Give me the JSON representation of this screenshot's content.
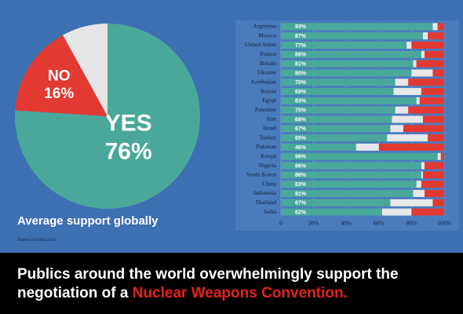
{
  "chart_data": [
    {
      "type": "pie",
      "title": "Average support globally",
      "source": "Source: Global Zero",
      "categories": [
        "YES",
        "NO",
        null
      ],
      "values": [
        76,
        16,
        8
      ],
      "value_labels": [
        "76%",
        "16%",
        null
      ],
      "colors": [
        "#4aa89a",
        "#e23a33",
        "#e6e6e6"
      ]
    },
    {
      "type": "stacked-bar-horizontal",
      "categories": [
        "Argentina",
        "Mexico",
        "United States",
        "France",
        "Britain",
        "Ukraine",
        "Azerbaijan",
        "Russia",
        "Egypt",
        "Palestine",
        "Iran",
        "Israel",
        "Turkey",
        "Pakistan",
        "Kenya",
        "Nigeria",
        "South Korea",
        "China",
        "Indonesia",
        "Thailand",
        "India"
      ],
      "series": [
        {
          "color": "#4aa89a",
          "values": [
            93,
            87,
            77,
            86,
            81,
            80,
            70,
            69,
            83,
            70,
            68,
            67,
            65,
            46,
            96,
            86,
            86,
            83,
            81,
            67,
            62
          ],
          "value_labels": [
            "93%",
            "87%",
            "77%",
            "86%",
            "81%",
            "80%",
            "70%",
            "69%",
            "83%",
            "70%",
            "68%",
            "67%",
            "65%",
            "46%",
            "96%",
            "86%",
            "86%",
            "83%",
            "81%",
            "67%",
            "62%"
          ]
        },
        {
          "color": "#e8e8e8",
          "values": [
            3,
            3,
            3,
            2,
            2,
            13,
            8,
            17,
            2,
            8,
            19,
            8,
            25,
            14,
            2,
            2,
            1,
            3,
            7,
            26,
            18
          ]
        },
        {
          "color": "#e23a33",
          "values": [
            4,
            10,
            20,
            12,
            17,
            7,
            22,
            14,
            15,
            22,
            13,
            25,
            10,
            40,
            2,
            12,
            13,
            14,
            12,
            7,
            20
          ]
        }
      ],
      "xlim": [
        0,
        100
      ],
      "xticks": [
        0,
        {
          "value": 20,
          "label": "20%"
        },
        {
          "value": 40,
          "label": "40%"
        },
        {
          "value": 60,
          "label": "60%"
        },
        {
          "value": 80,
          "label": "80%"
        },
        {
          "value": 100,
          "label": "100%"
        }
      ],
      "grid": true
    }
  ],
  "caption": {
    "text": "Publics around the world overwhelmingly support the negotiation of a",
    "highlight": "Nuclear Weapons Convention."
  }
}
